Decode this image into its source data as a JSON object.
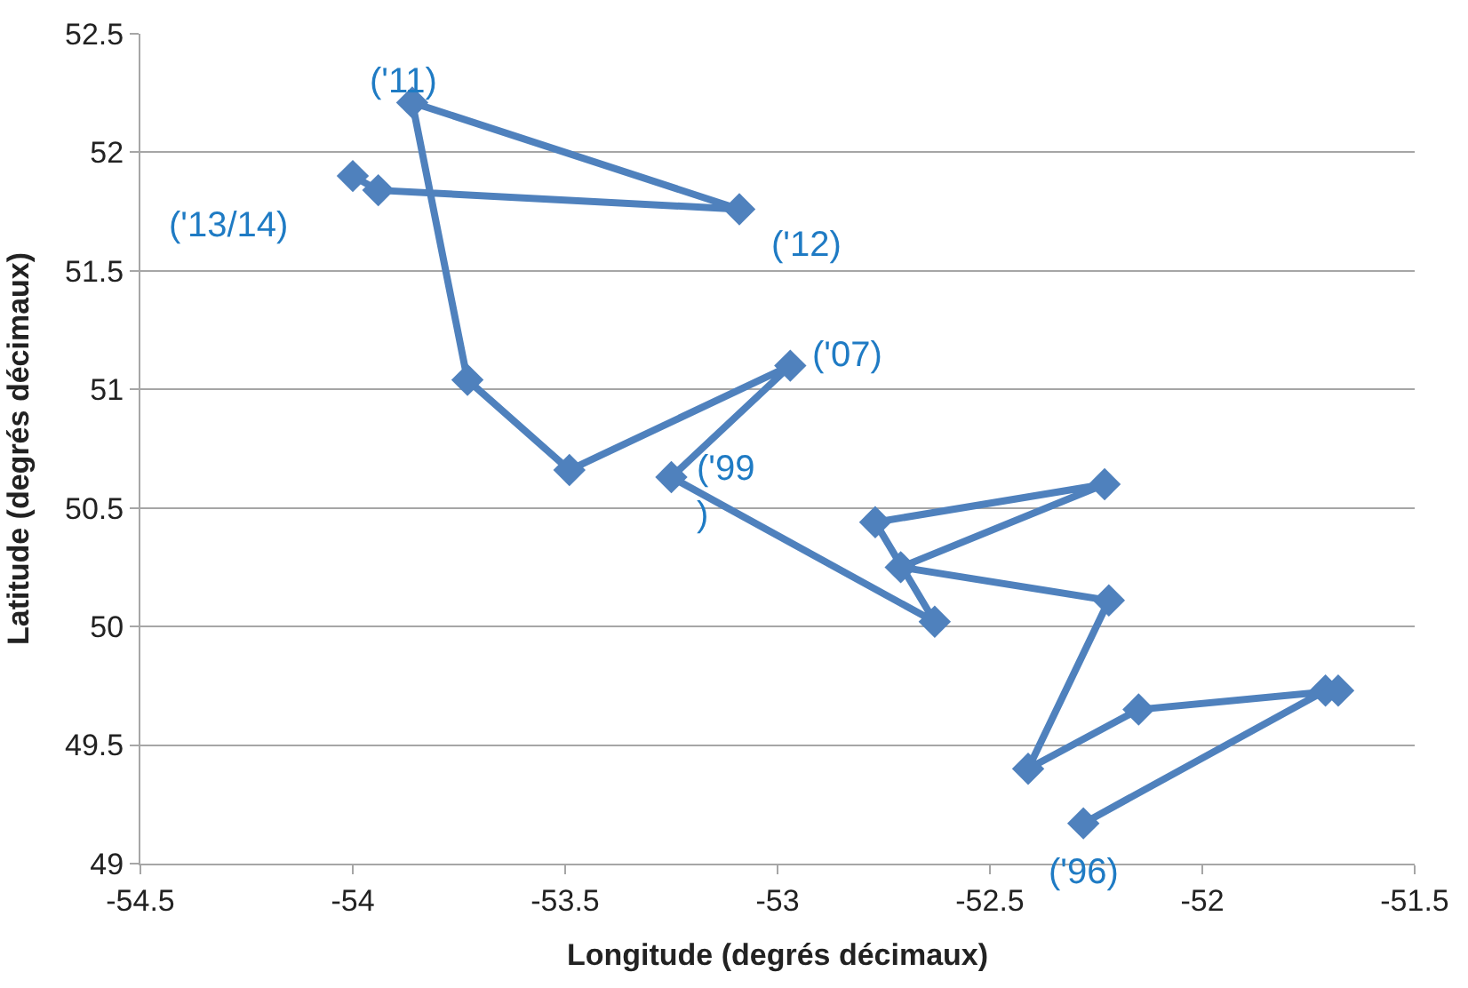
{
  "chart_data": {
    "type": "line",
    "xlabel": "Longitude (degrés décimaux)",
    "ylabel": "Latitude (degrés décimaux)",
    "x": [
      -52.28,
      -51.71,
      -51.68,
      -52.15,
      -52.41,
      -52.22,
      -52.71,
      -52.23,
      -52.77,
      -52.63,
      -53.25,
      -52.97,
      -53.49,
      -53.73,
      -53.86,
      -53.09,
      -53.94,
      -54.0
    ],
    "series": [
      {
        "color": "#4f81bd",
        "values": [
          49.17,
          49.73,
          49.73,
          49.65,
          49.4,
          50.11,
          50.25,
          50.6,
          50.44,
          50.02,
          50.63,
          51.1,
          50.66,
          51.04,
          52.21,
          51.76,
          51.84,
          51.9
        ]
      }
    ],
    "annotations": [
      {
        "text": "('96)",
        "x": -52.28,
        "y": 49.17
      },
      {
        "text": "('99\n)",
        "x": -53.25,
        "y": 50.63
      },
      {
        "text": "('07)",
        "x": -52.97,
        "y": 51.1
      },
      {
        "text": "('11)",
        "x": -53.86,
        "y": 52.21
      },
      {
        "text": "('12)",
        "x": -53.09,
        "y": 51.76
      },
      {
        "text": "('13/14)",
        "x": -54.0,
        "y": 51.9
      }
    ],
    "xlim": [
      -54.5,
      -51.5
    ],
    "xticks": [
      -54.5,
      -54,
      -53.5,
      -53,
      -52.5,
      -52,
      -51.5
    ],
    "ylim": [
      49,
      52.5
    ],
    "yticks": [
      49,
      49.5,
      50,
      50.5,
      51,
      51.5,
      52,
      52.5
    ],
    "grid": "y",
    "marker": "diamond",
    "line_style": "solid",
    "legend": false
  }
}
